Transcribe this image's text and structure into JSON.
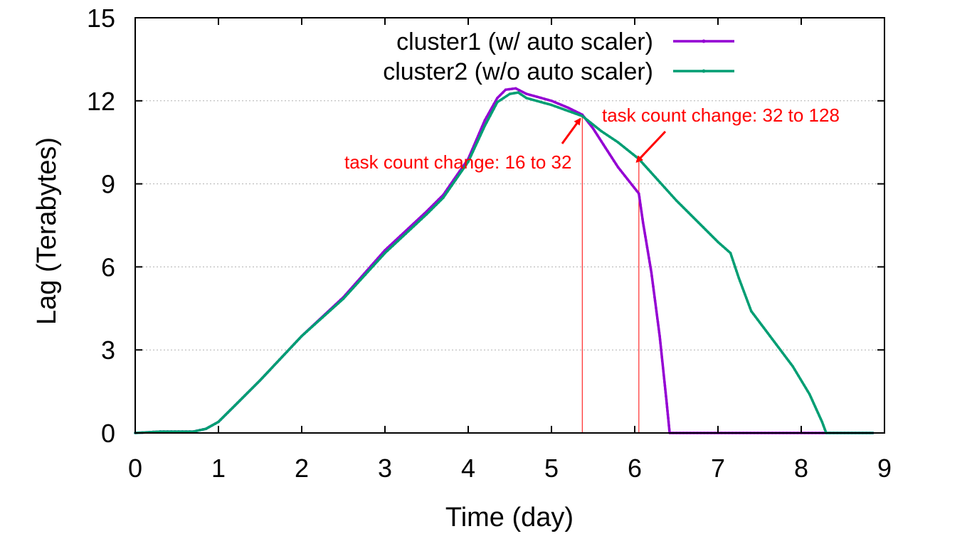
{
  "chart_data": {
    "type": "line",
    "title": "",
    "xlabel": "Time (day)",
    "ylabel": "Lag (Terabytes)",
    "xlim": [
      0,
      9
    ],
    "ylim": [
      0,
      15
    ],
    "x_ticks": [
      "0",
      "1",
      "2",
      "3",
      "4",
      "5",
      "6",
      "7",
      "8",
      "9"
    ],
    "y_ticks": [
      "0",
      "3",
      "6",
      "9",
      "12",
      "15"
    ],
    "grid": "horizontal dotted",
    "legend_position": "top-right",
    "series": [
      {
        "name": "cluster1 (w/ auto scaler)",
        "color": "#9400d3",
        "points": [
          [
            0,
            0
          ],
          [
            0.3,
            0.05
          ],
          [
            0.7,
            0.05
          ],
          [
            0.85,
            0.15
          ],
          [
            1.0,
            0.4
          ],
          [
            1.2,
            1.0
          ],
          [
            1.5,
            1.9
          ],
          [
            2.0,
            3.5
          ],
          [
            2.5,
            4.9
          ],
          [
            3.0,
            6.6
          ],
          [
            3.5,
            8.0
          ],
          [
            3.7,
            8.6
          ],
          [
            4.0,
            9.9
          ],
          [
            4.2,
            11.3
          ],
          [
            4.35,
            12.1
          ],
          [
            4.45,
            12.4
          ],
          [
            4.57,
            12.45
          ],
          [
            4.7,
            12.25
          ],
          [
            5.0,
            12.0
          ],
          [
            5.2,
            11.75
          ],
          [
            5.37,
            11.5
          ],
          [
            5.5,
            11.0
          ],
          [
            5.65,
            10.3
          ],
          [
            5.8,
            9.6
          ],
          [
            6.05,
            8.65
          ],
          [
            6.1,
            7.6
          ],
          [
            6.2,
            5.8
          ],
          [
            6.3,
            3.5
          ],
          [
            6.38,
            1.2
          ],
          [
            6.42,
            0
          ],
          [
            7.0,
            0
          ],
          [
            8.0,
            0
          ],
          [
            8.87,
            0
          ]
        ]
      },
      {
        "name": "cluster2 (w/o auto scaler)",
        "color": "#009e73",
        "points": [
          [
            0,
            0
          ],
          [
            0.3,
            0.05
          ],
          [
            0.7,
            0.05
          ],
          [
            0.85,
            0.15
          ],
          [
            1.0,
            0.4
          ],
          [
            1.2,
            1.0
          ],
          [
            1.5,
            1.9
          ],
          [
            2.0,
            3.5
          ],
          [
            2.5,
            4.85
          ],
          [
            3.0,
            6.5
          ],
          [
            3.5,
            7.9
          ],
          [
            3.7,
            8.5
          ],
          [
            4.0,
            9.8
          ],
          [
            4.2,
            11.1
          ],
          [
            4.35,
            11.95
          ],
          [
            4.5,
            12.25
          ],
          [
            4.6,
            12.3
          ],
          [
            4.7,
            12.1
          ],
          [
            5.0,
            11.85
          ],
          [
            5.37,
            11.45
          ],
          [
            5.6,
            10.9
          ],
          [
            5.8,
            10.5
          ],
          [
            6.05,
            9.9
          ],
          [
            6.5,
            8.4
          ],
          [
            7.0,
            6.9
          ],
          [
            7.15,
            6.5
          ],
          [
            7.25,
            5.6
          ],
          [
            7.4,
            4.4
          ],
          [
            7.6,
            3.6
          ],
          [
            7.9,
            2.4
          ],
          [
            8.1,
            1.4
          ],
          [
            8.25,
            0.4
          ],
          [
            8.3,
            0
          ],
          [
            8.87,
            0
          ]
        ]
      }
    ],
    "annotations": [
      {
        "text": "task count change: 16 to 32",
        "color": "#ff0000",
        "marker_x": 5.37,
        "arrow_to": [
          5.37,
          11.45
        ]
      },
      {
        "text": "task count change: 32 to 128",
        "color": "#ff0000",
        "marker_x": 6.05,
        "arrow_to": [
          6.05,
          9.9
        ]
      }
    ]
  }
}
